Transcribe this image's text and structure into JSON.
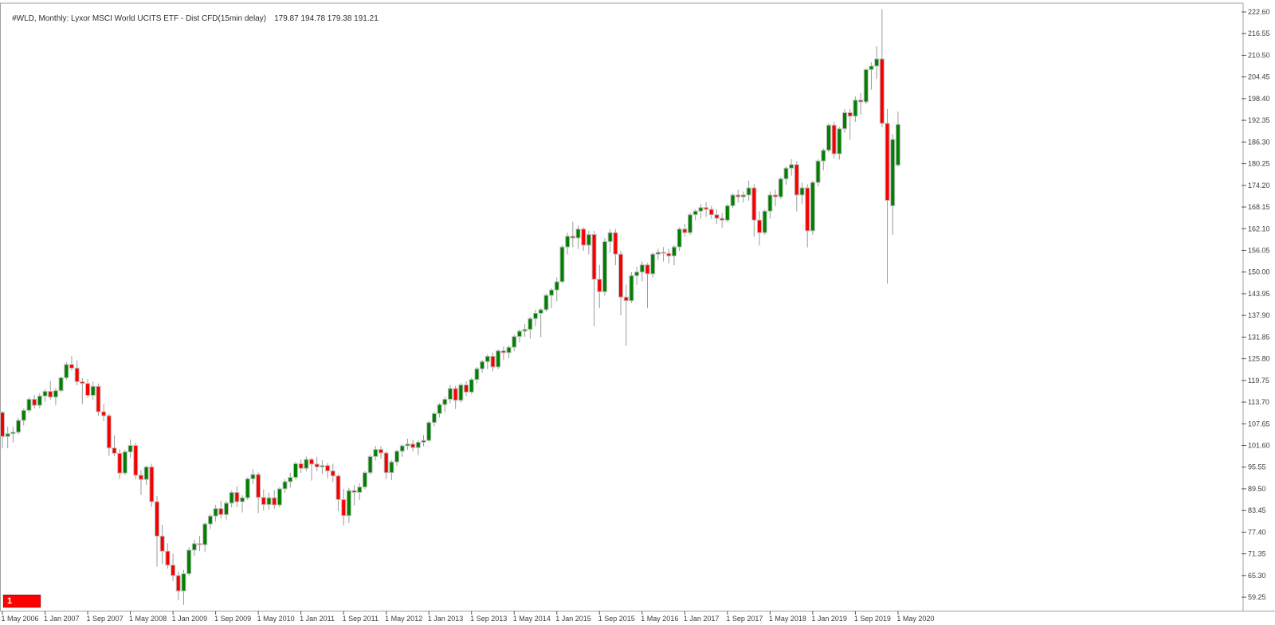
{
  "header": {
    "instrument": "#WLD, Monthly: Lyxor MSCI World UCITS ETF - Dist CFD(15min delay)",
    "ohlc_text": "179.87 194.78 179.38 191.21",
    "open": "179.87",
    "high": "194.78",
    "low": "179.38",
    "close": "191.21"
  },
  "badge": {
    "label": "1"
  },
  "colors": {
    "background": "#ffffff",
    "border": "#a0a0a0",
    "axis_text": "#3c3c3c",
    "bull_body": "#008000",
    "bear_body": "#f70000",
    "body_outline": "#bdbdbd",
    "wick": "#9a9a9a",
    "badge_bg": "#ff0000",
    "badge_text": "#ffffff"
  },
  "y_axis": {
    "labels": [
      "222.60",
      "216.55",
      "210.50",
      "204.45",
      "198.40",
      "192.35",
      "186.30",
      "180.25",
      "174.20",
      "168.15",
      "162.10",
      "156.05",
      "150.00",
      "143.95",
      "137.90",
      "131.85",
      "125.80",
      "119.75",
      "113.70",
      "107.65",
      "101.60",
      "95.55",
      "89.50",
      "83.45",
      "77.40",
      "71.35",
      "65.30",
      "59.25"
    ],
    "step": 6.05
  },
  "x_axis": {
    "labels": [
      "1 May 2006",
      "1 Jan 2007",
      "1 Sep 2007",
      "1 May 2008",
      "1 Jan 2009",
      "1 Sep 2009",
      "1 May 2010",
      "1 Jan 2011",
      "1 Sep 2011",
      "1 May 2012",
      "1 Jan 2013",
      "1 Sep 2013",
      "1 May 2014",
      "1 Jan 2015",
      "1 Sep 2015",
      "1 May 2016",
      "1 Jan 2017",
      "1 Sep 2017",
      "1 May 2018",
      "1 Jan 2019",
      "1 Sep 2019",
      "1 May 2020"
    ],
    "label_every_n_months": 8
  },
  "chart_data": {
    "type": "candlestick",
    "symbol": "#WLD",
    "timeframe": "Monthly",
    "title": "Lyxor MSCI World UCITS ETF - Dist CFD(15min delay)",
    "ylim": [
      59.25,
      222.6
    ],
    "grid": false,
    "legend": "none",
    "columns": [
      "month",
      "open",
      "high",
      "low",
      "close"
    ],
    "candles": [
      [
        "2006-05",
        110.8,
        111.2,
        100.9,
        104.1
      ],
      [
        "2006-06",
        104.1,
        106.9,
        100.8,
        104.9
      ],
      [
        "2006-07",
        104.9,
        106.8,
        102.4,
        105.3
      ],
      [
        "2006-08",
        105.3,
        109.2,
        104.7,
        108.6
      ],
      [
        "2006-09",
        108.6,
        111.9,
        107.2,
        111.4
      ],
      [
        "2006-10",
        111.4,
        115.0,
        110.8,
        114.5
      ],
      [
        "2006-11",
        114.5,
        115.7,
        111.9,
        112.8
      ],
      [
        "2006-12",
        112.8,
        116.1,
        112.0,
        115.4
      ],
      [
        "2007-01",
        115.4,
        117.4,
        113.8,
        116.7
      ],
      [
        "2007-02",
        116.7,
        119.6,
        114.4,
        115.1
      ],
      [
        "2007-03",
        115.1,
        117.5,
        112.9,
        116.9
      ],
      [
        "2007-04",
        116.9,
        120.9,
        116.4,
        120.5
      ],
      [
        "2007-05",
        120.5,
        124.9,
        119.9,
        124.2
      ],
      [
        "2007-06",
        124.2,
        126.6,
        122.4,
        123.2
      ],
      [
        "2007-07",
        123.2,
        125.4,
        118.4,
        119.4
      ],
      [
        "2007-08",
        119.4,
        120.4,
        113.1,
        118.9
      ],
      [
        "2007-09",
        118.9,
        120.1,
        114.9,
        115.6
      ],
      [
        "2007-10",
        115.6,
        119.4,
        114.4,
        118.1
      ],
      [
        "2007-11",
        118.1,
        118.9,
        109.9,
        111.0
      ],
      [
        "2007-12",
        111.0,
        113.1,
        108.4,
        109.9
      ],
      [
        "2008-01",
        109.9,
        110.5,
        98.7,
        100.9
      ],
      [
        "2008-02",
        100.9,
        104.4,
        98.6,
        99.4
      ],
      [
        "2008-03",
        99.4,
        100.5,
        92.2,
        93.9
      ],
      [
        "2008-04",
        93.9,
        100.4,
        93.3,
        99.8
      ],
      [
        "2008-05",
        99.8,
        103.3,
        98.2,
        101.6
      ],
      [
        "2008-06",
        101.6,
        102.3,
        92.2,
        93.3
      ],
      [
        "2008-07",
        93.3,
        94.7,
        87.8,
        92.1
      ],
      [
        "2008-08",
        92.1,
        96.0,
        90.6,
        95.6
      ],
      [
        "2008-09",
        95.6,
        96.5,
        84.4,
        85.9
      ],
      [
        "2008-10",
        85.9,
        87.5,
        67.8,
        76.3
      ],
      [
        "2008-11",
        76.3,
        79.5,
        68.5,
        72.1
      ],
      [
        "2008-12",
        72.1,
        74.3,
        67.2,
        68.2
      ],
      [
        "2009-01",
        68.2,
        71.4,
        63.8,
        65.3
      ],
      [
        "2009-02",
        65.3,
        66.5,
        58.4,
        61.0
      ],
      [
        "2009-03",
        61.0,
        66.9,
        57.1,
        65.8
      ],
      [
        "2009-04",
        65.8,
        73.2,
        65.2,
        72.4
      ],
      [
        "2009-05",
        72.4,
        75.3,
        70.8,
        74.2
      ],
      [
        "2009-06",
        74.2,
        76.4,
        72.1,
        73.9
      ],
      [
        "2009-07",
        73.9,
        80.2,
        71.9,
        79.7
      ],
      [
        "2009-08",
        79.7,
        82.5,
        78.3,
        81.9
      ],
      [
        "2009-09",
        81.9,
        85.0,
        80.4,
        84.0
      ],
      [
        "2009-10",
        84.0,
        86.2,
        81.2,
        82.3
      ],
      [
        "2009-11",
        82.3,
        86.1,
        80.9,
        85.5
      ],
      [
        "2009-12",
        85.5,
        89.0,
        84.3,
        88.5
      ],
      [
        "2010-01",
        88.5,
        90.2,
        84.4,
        85.9
      ],
      [
        "2010-02",
        85.9,
        87.7,
        82.9,
        87.0
      ],
      [
        "2010-03",
        87.0,
        92.7,
        86.4,
        92.3
      ],
      [
        "2010-04",
        92.3,
        95.0,
        90.9,
        93.5
      ],
      [
        "2010-05",
        93.5,
        94.1,
        82.7,
        87.1
      ],
      [
        "2010-06",
        87.1,
        89.3,
        83.4,
        85.1
      ],
      [
        "2010-07",
        85.1,
        88.4,
        83.7,
        87.0
      ],
      [
        "2010-08",
        87.0,
        89.1,
        83.9,
        85.0
      ],
      [
        "2010-09",
        85.0,
        90.0,
        84.3,
        89.5
      ],
      [
        "2010-10",
        89.5,
        92.2,
        88.4,
        91.5
      ],
      [
        "2010-11",
        91.5,
        94.0,
        89.8,
        92.7
      ],
      [
        "2010-12",
        92.7,
        97.1,
        92.1,
        96.5
      ],
      [
        "2011-01",
        96.5,
        97.7,
        93.9,
        95.2
      ],
      [
        "2011-02",
        95.2,
        98.5,
        94.4,
        97.7
      ],
      [
        "2011-03",
        97.7,
        98.2,
        91.8,
        96.4
      ],
      [
        "2011-04",
        96.4,
        98.4,
        94.4,
        95.6
      ],
      [
        "2011-05",
        95.6,
        97.5,
        93.6,
        96.0
      ],
      [
        "2011-06",
        96.0,
        96.7,
        92.4,
        94.5
      ],
      [
        "2011-07",
        94.5,
        96.5,
        91.4,
        93.1
      ],
      [
        "2011-08",
        93.1,
        93.6,
        83.3,
        86.5
      ],
      [
        "2011-09",
        86.5,
        89.5,
        79.3,
        82.0
      ],
      [
        "2011-10",
        82.0,
        89.8,
        79.9,
        89.0
      ],
      [
        "2011-11",
        89.0,
        90.5,
        84.9,
        88.5
      ],
      [
        "2011-12",
        88.5,
        91.0,
        86.4,
        90.0
      ],
      [
        "2012-01",
        90.0,
        94.5,
        89.4,
        94.0
      ],
      [
        "2012-02",
        94.0,
        99.0,
        93.5,
        98.5
      ],
      [
        "2012-03",
        98.5,
        101.5,
        97.4,
        100.5
      ],
      [
        "2012-04",
        100.5,
        101.4,
        97.9,
        99.5
      ],
      [
        "2012-05",
        99.5,
        100.0,
        92.3,
        94.0
      ],
      [
        "2012-06",
        94.0,
        97.5,
        91.9,
        97.0
      ],
      [
        "2012-07",
        97.0,
        100.5,
        95.9,
        100.0
      ],
      [
        "2012-08",
        100.0,
        102.0,
        98.4,
        101.5
      ],
      [
        "2012-09",
        101.5,
        103.5,
        100.4,
        102.0
      ],
      [
        "2012-10",
        102.0,
        103.2,
        99.9,
        101.0
      ],
      [
        "2012-11",
        101.0,
        103.0,
        98.9,
        102.5
      ],
      [
        "2012-12",
        102.5,
        104.5,
        101.4,
        103.0
      ],
      [
        "2013-01",
        103.0,
        108.5,
        102.5,
        108.0
      ],
      [
        "2013-02",
        108.0,
        111.0,
        106.9,
        110.5
      ],
      [
        "2013-03",
        110.5,
        113.5,
        109.4,
        113.0
      ],
      [
        "2013-04",
        113.0,
        115.2,
        110.9,
        114.5
      ],
      [
        "2013-05",
        114.5,
        118.5,
        113.4,
        117.5
      ],
      [
        "2013-06",
        117.5,
        118.2,
        111.8,
        114.2
      ],
      [
        "2013-07",
        114.2,
        119.0,
        113.6,
        118.5
      ],
      [
        "2013-08",
        118.5,
        119.5,
        115.4,
        116.5
      ],
      [
        "2013-09",
        116.5,
        120.5,
        115.9,
        120.0
      ],
      [
        "2013-10",
        120.0,
        123.5,
        118.9,
        123.0
      ],
      [
        "2013-11",
        123.0,
        125.5,
        121.9,
        125.0
      ],
      [
        "2013-12",
        125.0,
        127.0,
        122.9,
        126.5
      ],
      [
        "2014-01",
        126.5,
        127.5,
        122.3,
        123.5
      ],
      [
        "2014-02",
        123.5,
        128.5,
        122.9,
        128.0
      ],
      [
        "2014-03",
        128.0,
        129.2,
        125.4,
        127.5
      ],
      [
        "2014-04",
        127.5,
        129.5,
        125.9,
        129.0
      ],
      [
        "2014-05",
        129.0,
        132.5,
        127.9,
        132.0
      ],
      [
        "2014-06",
        132.0,
        134.0,
        130.4,
        133.5
      ],
      [
        "2014-07",
        133.5,
        135.5,
        131.9,
        134.0
      ],
      [
        "2014-08",
        134.0,
        137.5,
        131.4,
        137.0
      ],
      [
        "2014-09",
        137.0,
        139.5,
        134.9,
        138.5
      ],
      [
        "2014-10",
        138.5,
        140.0,
        131.8,
        139.5
      ],
      [
        "2014-11",
        139.5,
        144.0,
        138.9,
        143.5
      ],
      [
        "2014-12",
        143.5,
        145.5,
        139.9,
        145.0
      ],
      [
        "2015-01",
        145.0,
        148.5,
        141.9,
        147.3
      ],
      [
        "2015-02",
        147.3,
        157.5,
        146.9,
        157.0
      ],
      [
        "2015-03",
        157.0,
        161.0,
        154.9,
        160.0
      ],
      [
        "2015-04",
        160.0,
        164.0,
        156.9,
        159.5
      ],
      [
        "2015-05",
        159.5,
        163.0,
        156.4,
        162.0
      ],
      [
        "2015-06",
        162.0,
        162.5,
        155.9,
        157.5
      ],
      [
        "2015-07",
        157.5,
        161.5,
        154.9,
        160.5
      ],
      [
        "2015-08",
        160.5,
        161.5,
        134.9,
        148.0
      ],
      [
        "2015-09",
        148.0,
        152.0,
        139.9,
        144.5
      ],
      [
        "2015-10",
        144.5,
        159.5,
        143.4,
        158.5
      ],
      [
        "2015-11",
        158.5,
        162.0,
        155.4,
        161.0
      ],
      [
        "2015-12",
        161.0,
        162.0,
        151.9,
        155.0
      ],
      [
        "2016-01",
        155.0,
        156.0,
        137.9,
        143.0
      ],
      [
        "2016-02",
        143.0,
        146.5,
        129.4,
        142.0
      ],
      [
        "2016-03",
        142.0,
        150.0,
        141.4,
        149.0
      ],
      [
        "2016-04",
        149.0,
        151.5,
        146.4,
        150.0
      ],
      [
        "2016-05",
        150.0,
        153.0,
        147.4,
        152.0
      ],
      [
        "2016-06",
        152.0,
        152.5,
        139.9,
        149.5
      ],
      [
        "2016-07",
        149.5,
        155.5,
        148.4,
        155.0
      ],
      [
        "2016-08",
        155.0,
        156.5,
        153.4,
        155.5
      ],
      [
        "2016-09",
        155.5,
        157.0,
        152.9,
        155.2
      ],
      [
        "2016-10",
        155.2,
        156.5,
        152.4,
        154.5
      ],
      [
        "2016-11",
        154.5,
        157.5,
        151.9,
        157.0
      ],
      [
        "2016-12",
        157.0,
        162.5,
        155.9,
        162.0
      ],
      [
        "2017-01",
        162.0,
        163.5,
        159.9,
        161.0
      ],
      [
        "2017-02",
        161.0,
        166.5,
        160.4,
        166.0
      ],
      [
        "2017-03",
        166.0,
        167.5,
        164.4,
        167.0
      ],
      [
        "2017-04",
        167.0,
        169.0,
        164.9,
        168.0
      ],
      [
        "2017-05",
        168.0,
        169.5,
        165.4,
        167.5
      ],
      [
        "2017-06",
        167.5,
        168.5,
        164.9,
        166.0
      ],
      [
        "2017-07",
        166.0,
        167.5,
        163.4,
        165.0
      ],
      [
        "2017-08",
        165.0,
        166.5,
        162.4,
        164.5
      ],
      [
        "2017-09",
        164.5,
        169.0,
        163.9,
        168.5
      ],
      [
        "2017-10",
        168.5,
        172.0,
        167.9,
        171.5
      ],
      [
        "2017-11",
        171.5,
        173.0,
        169.4,
        171.0
      ],
      [
        "2017-12",
        171.0,
        172.5,
        169.4,
        171.5
      ],
      [
        "2018-01",
        171.5,
        175.5,
        169.9,
        173.5
      ],
      [
        "2018-02",
        173.5,
        174.5,
        159.9,
        164.5
      ],
      [
        "2018-03",
        164.5,
        167.0,
        157.4,
        161.0
      ],
      [
        "2018-04",
        161.0,
        167.5,
        160.4,
        167.0
      ],
      [
        "2018-05",
        167.0,
        172.5,
        164.9,
        171.5
      ],
      [
        "2018-06",
        171.5,
        173.0,
        168.4,
        171.0
      ],
      [
        "2018-07",
        171.0,
        176.5,
        170.4,
        176.0
      ],
      [
        "2018-08",
        176.0,
        179.5,
        174.4,
        179.0
      ],
      [
        "2018-09",
        179.0,
        181.5,
        176.9,
        180.0
      ],
      [
        "2018-10",
        180.0,
        181.0,
        166.9,
        171.5
      ],
      [
        "2018-11",
        171.5,
        175.0,
        168.9,
        173.5
      ],
      [
        "2018-12",
        173.5,
        174.5,
        156.9,
        161.5
      ],
      [
        "2019-01",
        161.5,
        175.5,
        160.4,
        175.0
      ],
      [
        "2019-02",
        175.0,
        181.5,
        173.9,
        181.0
      ],
      [
        "2019-03",
        181.0,
        184.5,
        178.4,
        184.0
      ],
      [
        "2019-04",
        184.0,
        191.5,
        183.4,
        191.0
      ],
      [
        "2019-05",
        191.0,
        192.0,
        181.8,
        183.0
      ],
      [
        "2019-06",
        183.0,
        190.5,
        181.4,
        190.0
      ],
      [
        "2019-07",
        190.0,
        195.5,
        188.9,
        194.5
      ],
      [
        "2019-08",
        194.5,
        195.5,
        186.9,
        193.5
      ],
      [
        "2019-09",
        193.5,
        199.0,
        191.9,
        198.0
      ],
      [
        "2019-10",
        198.0,
        200.0,
        193.9,
        197.5
      ],
      [
        "2019-11",
        197.5,
        207.0,
        196.9,
        206.5
      ],
      [
        "2019-12",
        206.5,
        208.5,
        200.9,
        207.5
      ],
      [
        "2020-01",
        207.5,
        213.0,
        203.9,
        209.5
      ],
      [
        "2020-02",
        209.5,
        223.4,
        190.4,
        191.5
      ],
      [
        "2020-03",
        191.5,
        195.5,
        146.8,
        170.0
      ],
      [
        "2020-04",
        168.5,
        188.5,
        160.4,
        187.0
      ],
      [
        "2020-05",
        179.87,
        194.78,
        179.38,
        191.21
      ]
    ]
  }
}
